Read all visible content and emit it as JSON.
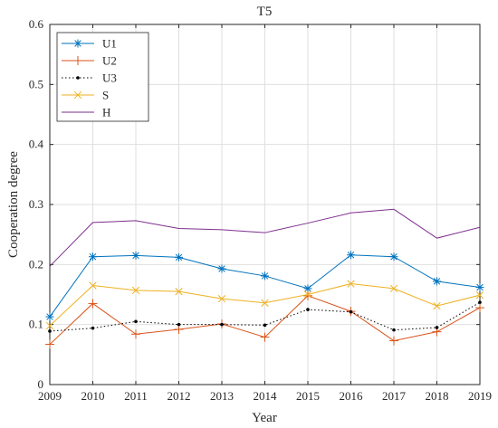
{
  "chart_data": {
    "type": "line",
    "title": "T5",
    "xlabel": "Year",
    "ylabel": "Cooperation degree",
    "x": [
      2009,
      2010,
      2011,
      2012,
      2013,
      2014,
      2015,
      2016,
      2017,
      2018,
      2019
    ],
    "xlim": [
      2009,
      2019
    ],
    "ylim": [
      0,
      0.6
    ],
    "yticks": [
      "0",
      "0.1",
      "0.2",
      "0.3",
      "0.4",
      "0.5",
      "0.6"
    ],
    "xticks": [
      "2009",
      "2010",
      "2011",
      "2012",
      "2013",
      "2014",
      "2015",
      "2016",
      "2017",
      "2018",
      "2019"
    ],
    "grid": true,
    "legend_position": "top-left",
    "series": [
      {
        "name": "U1",
        "color": "#0072BD",
        "marker": "asterisk",
        "dash": "solid",
        "values": [
          0.113,
          0.213,
          0.215,
          0.212,
          0.193,
          0.181,
          0.16,
          0.216,
          0.213,
          0.172,
          0.162
        ]
      },
      {
        "name": "U2",
        "color": "#D95319",
        "marker": "plus",
        "dash": "solid",
        "values": [
          0.067,
          0.135,
          0.084,
          0.092,
          0.101,
          0.079,
          0.148,
          0.122,
          0.073,
          0.088,
          0.128
        ]
      },
      {
        "name": "U3",
        "color": "#000000",
        "marker": "dot",
        "dash": "dotted",
        "values": [
          0.089,
          0.094,
          0.105,
          0.1,
          0.1,
          0.099,
          0.125,
          0.121,
          0.091,
          0.095,
          0.137
        ]
      },
      {
        "name": "S",
        "color": "#EDB120",
        "marker": "x",
        "dash": "solid",
        "values": [
          0.098,
          0.165,
          0.157,
          0.155,
          0.143,
          0.136,
          0.15,
          0.168,
          0.16,
          0.131,
          0.149
        ]
      },
      {
        "name": "H",
        "color": "#7E2F8E",
        "marker": "none",
        "dash": "solid",
        "values": [
          0.197,
          0.27,
          0.273,
          0.26,
          0.258,
          0.253,
          0.269,
          0.286,
          0.292,
          0.244,
          0.262
        ]
      }
    ]
  }
}
